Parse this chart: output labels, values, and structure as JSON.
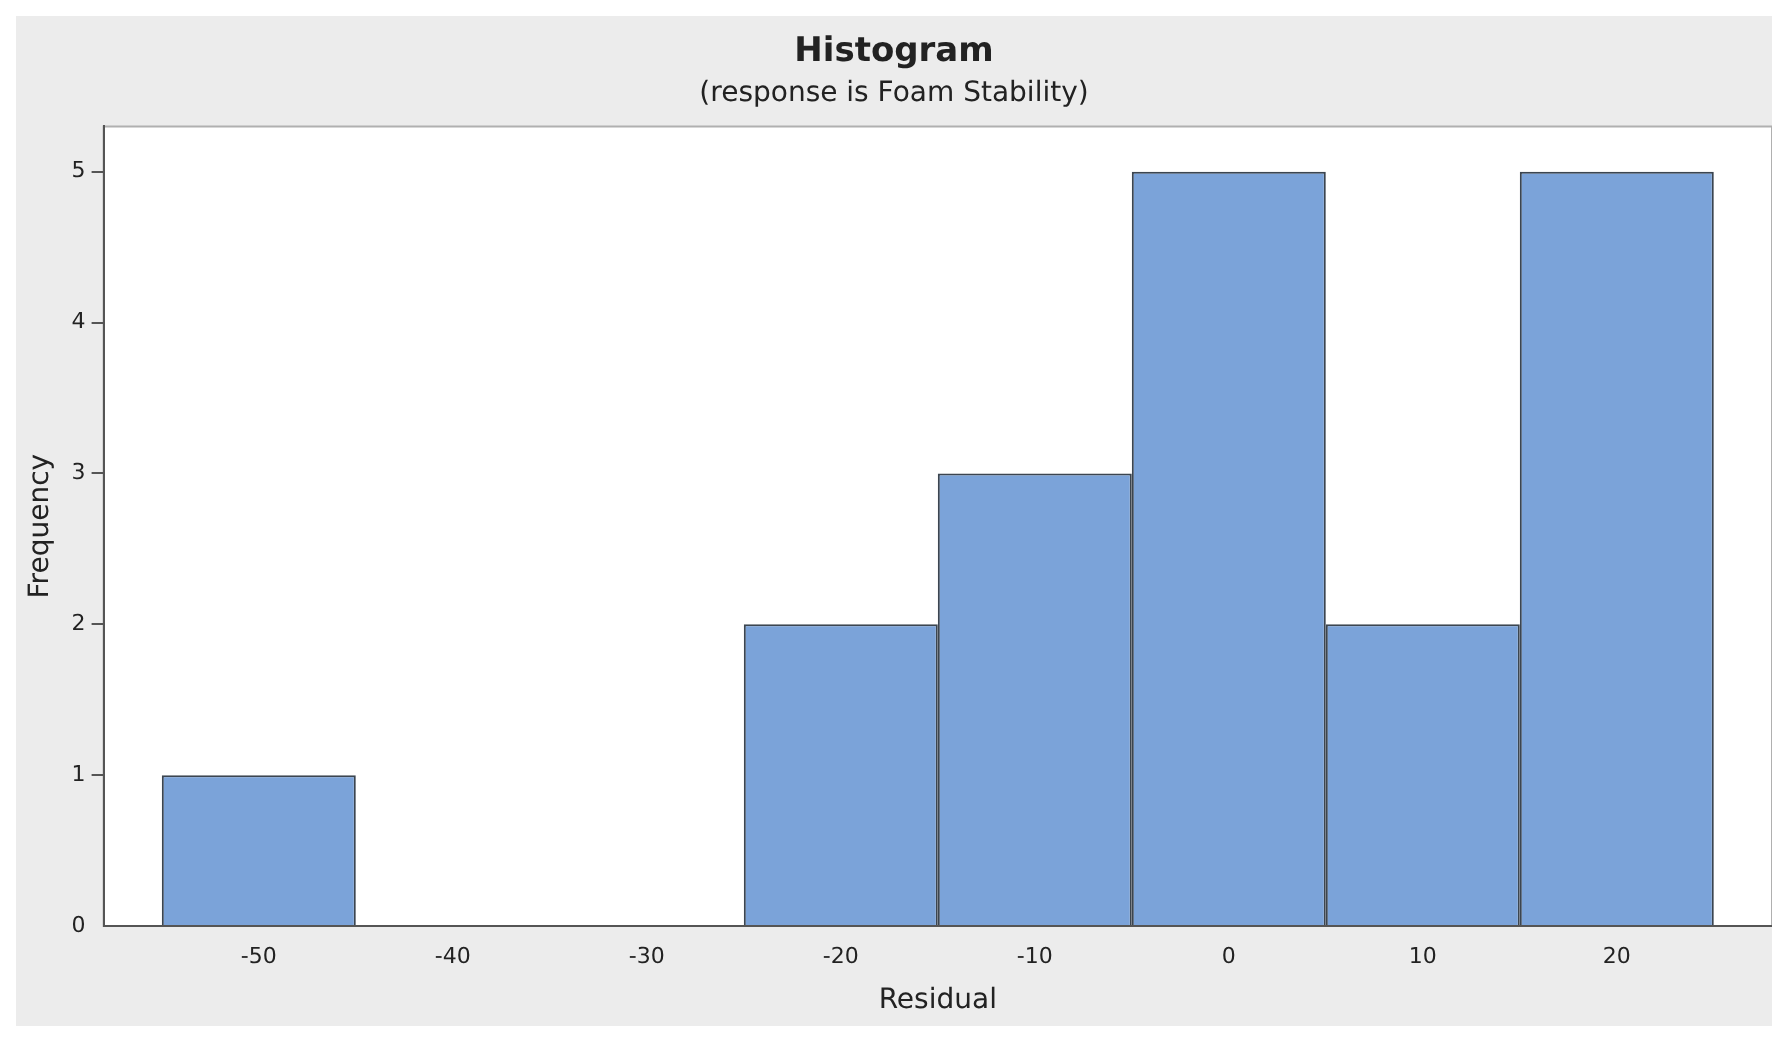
{
  "chart_data": {
    "type": "histogram",
    "title": "Histogram",
    "subtitle": "(response is Foam Stability)",
    "xlabel": "Residual",
    "ylabel": "Frequency",
    "bins": [
      -55,
      -45,
      -35,
      -25,
      -15,
      -5,
      5,
      15,
      25
    ],
    "values": [
      1,
      0,
      0,
      2,
      3,
      5,
      2,
      5
    ],
    "color": "#7ba3d9",
    "xlim": [
      -58,
      28
    ],
    "xticks": [
      -50,
      -40,
      -30,
      -20,
      -10,
      0,
      10,
      20
    ],
    "ylim": [
      0,
      5.3
    ],
    "yticks": [
      0,
      1,
      2,
      3,
      4,
      5
    ],
    "grid": false,
    "legend": false
  }
}
